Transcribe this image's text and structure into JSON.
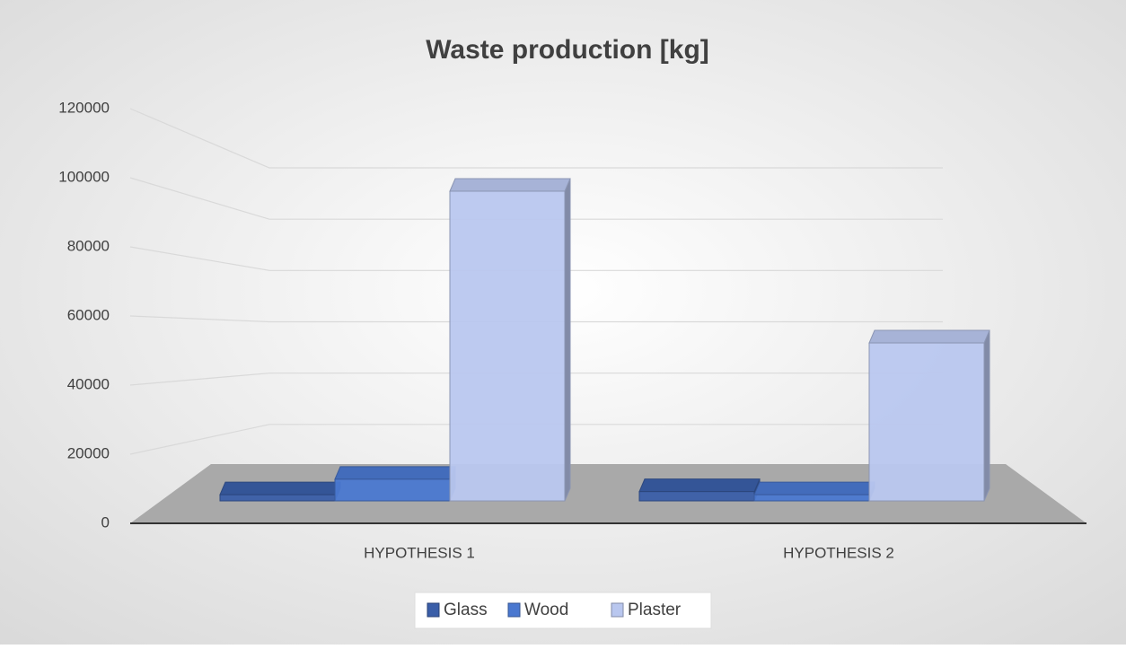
{
  "chart_data": {
    "type": "bar3d",
    "title": "Waste production [kg]",
    "categories": [
      "HYPOTHESIS 1",
      "HYPOTHESIS 2"
    ],
    "series": [
      {
        "name": "Glass",
        "color": "#3a5ea8",
        "values": [
          2000,
          3000
        ]
      },
      {
        "name": "Wood",
        "color": "#4a78d0",
        "values": [
          7000,
          2000
        ]
      },
      {
        "name": "Plaster",
        "color": "#b9c7ef",
        "values": [
          100000,
          51000
        ]
      }
    ],
    "ylim": [
      0,
      120000
    ],
    "yticks": [
      0,
      20000,
      40000,
      60000,
      80000,
      100000,
      120000
    ],
    "grid": true,
    "legend": "bottom"
  }
}
